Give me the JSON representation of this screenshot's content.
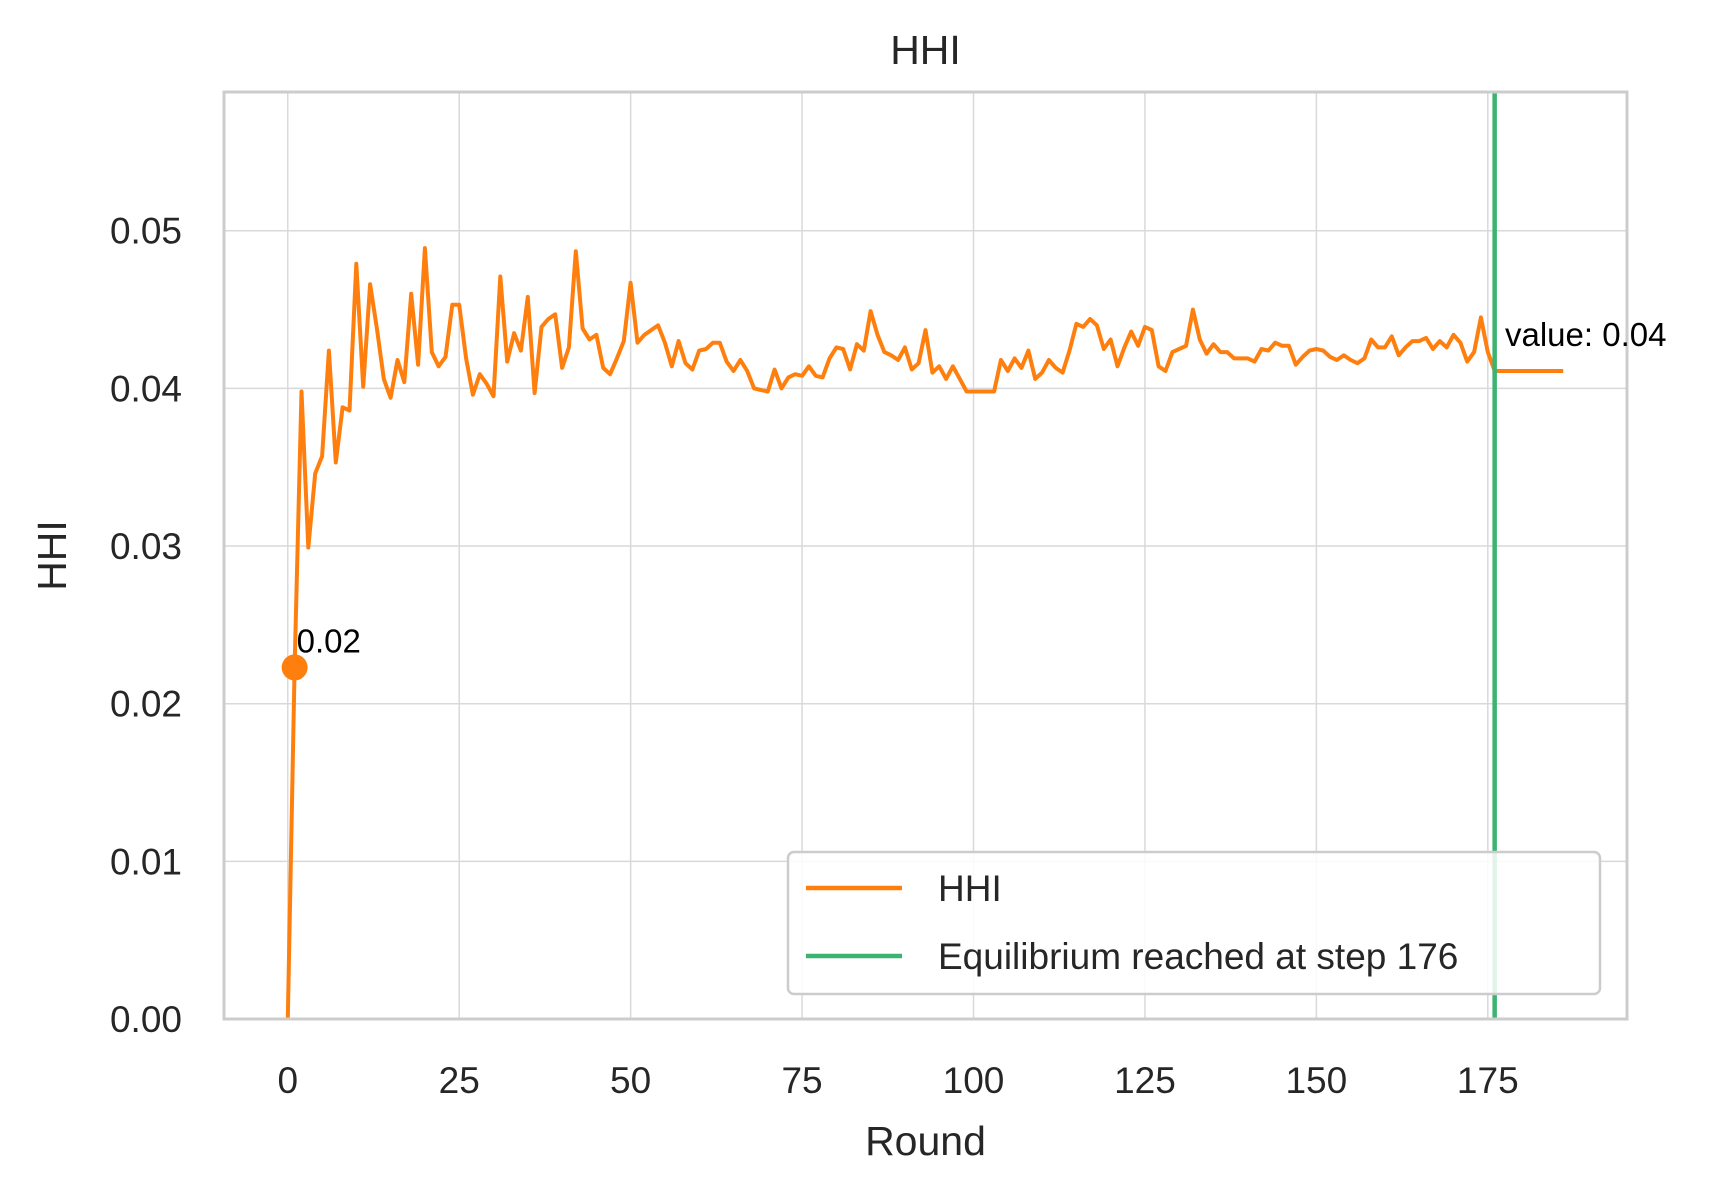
{
  "chart_data": {
    "type": "line",
    "title": "HHI",
    "xlabel": "Round",
    "ylabel": "HHI",
    "xlim": [
      -9.3,
      195.3
    ],
    "ylim": [
      0,
      0.0588
    ],
    "xticks": [
      0,
      25,
      50,
      75,
      100,
      125,
      150,
      175
    ],
    "xtick_labels": [
      "0",
      "25",
      "50",
      "75",
      "100",
      "125",
      "150",
      "175"
    ],
    "yticks": [
      0,
      0.01,
      0.02,
      0.03,
      0.04,
      0.05
    ],
    "ytick_labels": [
      "0.00",
      "0.01",
      "0.02",
      "0.03",
      "0.04",
      "0.05"
    ],
    "grid": true,
    "legend_position": "lower right",
    "series": [
      {
        "name": "HHI",
        "color": "#ff7f0e",
        "x": [
          0,
          1,
          2,
          3,
          4,
          5,
          6,
          7,
          8,
          9,
          10,
          11,
          12,
          13,
          14,
          15,
          16,
          17,
          18,
          19,
          20,
          21,
          22,
          23,
          24,
          25,
          26,
          27,
          28,
          29,
          30,
          31,
          32,
          33,
          34,
          35,
          36,
          37,
          38,
          39,
          40,
          41,
          42,
          43,
          44,
          45,
          46,
          47,
          48,
          49,
          50,
          51,
          52,
          53,
          54,
          55,
          56,
          57,
          58,
          59,
          60,
          61,
          62,
          63,
          64,
          65,
          66,
          67,
          68,
          69,
          70,
          71,
          72,
          73,
          74,
          75,
          76,
          77,
          78,
          79,
          80,
          81,
          82,
          83,
          84,
          85,
          86,
          87,
          88,
          89,
          90,
          91,
          92,
          93,
          94,
          95,
          96,
          97,
          98,
          99,
          100,
          101,
          102,
          103,
          104,
          105,
          106,
          107,
          108,
          109,
          110,
          111,
          112,
          113,
          114,
          115,
          116,
          117,
          118,
          119,
          120,
          121,
          122,
          123,
          124,
          125,
          126,
          127,
          128,
          129,
          130,
          131,
          132,
          133,
          134,
          135,
          136,
          137,
          138,
          139,
          140,
          141,
          142,
          143,
          144,
          145,
          146,
          147,
          148,
          149,
          150,
          151,
          152,
          153,
          154,
          155,
          156,
          157,
          158,
          159,
          160,
          161,
          162,
          163,
          164,
          165,
          166,
          167,
          168,
          169,
          170,
          171,
          172,
          173,
          174,
          175,
          176,
          177,
          178,
          179,
          180,
          181,
          182,
          183,
          184,
          185,
          186
        ],
        "values": [
          0.0,
          0.0223,
          0.0398,
          0.0299,
          0.0346,
          0.0357,
          0.0424,
          0.0353,
          0.0388,
          0.0386,
          0.0479,
          0.0401,
          0.0466,
          0.0438,
          0.0406,
          0.0394,
          0.0418,
          0.0404,
          0.046,
          0.0415,
          0.0489,
          0.0423,
          0.0414,
          0.042,
          0.0453,
          0.0453,
          0.0419,
          0.0396,
          0.0409,
          0.0403,
          0.0395,
          0.0471,
          0.0417,
          0.0435,
          0.0424,
          0.0458,
          0.0397,
          0.0439,
          0.0444,
          0.0447,
          0.0413,
          0.0426,
          0.0487,
          0.0438,
          0.0431,
          0.0434,
          0.0413,
          0.0409,
          0.0419,
          0.043,
          0.0467,
          0.0429,
          0.0434,
          0.0437,
          0.044,
          0.0429,
          0.0414,
          0.043,
          0.0416,
          0.0412,
          0.0424,
          0.0425,
          0.0429,
          0.0429,
          0.0417,
          0.0411,
          0.0418,
          0.0411,
          0.04,
          0.0399,
          0.0398,
          0.0412,
          0.04,
          0.0407,
          0.0409,
          0.0408,
          0.0414,
          0.0408,
          0.0407,
          0.0419,
          0.0426,
          0.0425,
          0.0412,
          0.0428,
          0.0424,
          0.0449,
          0.0434,
          0.0423,
          0.0421,
          0.0418,
          0.0426,
          0.0412,
          0.0416,
          0.0437,
          0.041,
          0.0414,
          0.0406,
          0.0414,
          0.0406,
          0.0398,
          0.0398,
          0.0398,
          0.0398,
          0.0398,
          0.0418,
          0.0411,
          0.0419,
          0.0413,
          0.0424,
          0.0406,
          0.041,
          0.0418,
          0.0413,
          0.041,
          0.0424,
          0.0441,
          0.0439,
          0.0444,
          0.044,
          0.0425,
          0.0431,
          0.0414,
          0.0426,
          0.0436,
          0.0427,
          0.0439,
          0.0437,
          0.0414,
          0.0411,
          0.0423,
          0.0425,
          0.0427,
          0.045,
          0.0431,
          0.0422,
          0.0428,
          0.0423,
          0.0423,
          0.0419,
          0.0419,
          0.0419,
          0.0417,
          0.0425,
          0.0424,
          0.0429,
          0.0427,
          0.0427,
          0.0415,
          0.042,
          0.0424,
          0.0425,
          0.0424,
          0.042,
          0.0418,
          0.0421,
          0.0418,
          0.0416,
          0.0419,
          0.0431,
          0.0426,
          0.0426,
          0.0433,
          0.0421,
          0.0426,
          0.043,
          0.043,
          0.0432,
          0.0425,
          0.043,
          0.0426,
          0.0434,
          0.0429,
          0.0417,
          0.0423,
          0.0445,
          0.0423,
          0.0411,
          0.0411,
          0.0411,
          0.0411,
          0.0411,
          0.0411,
          0.0411,
          0.0411,
          0.0411,
          0.0411,
          0.0411
        ]
      },
      {
        "name": "Equilibrium reached at step 176",
        "color": "#3cb371",
        "type": "vline",
        "x": 176
      }
    ],
    "annotations": [
      {
        "text": "0.02",
        "x": 1,
        "y": 0.0223
      },
      {
        "text": "value: 0.04",
        "x": 186,
        "y": 0.0411
      }
    ]
  }
}
